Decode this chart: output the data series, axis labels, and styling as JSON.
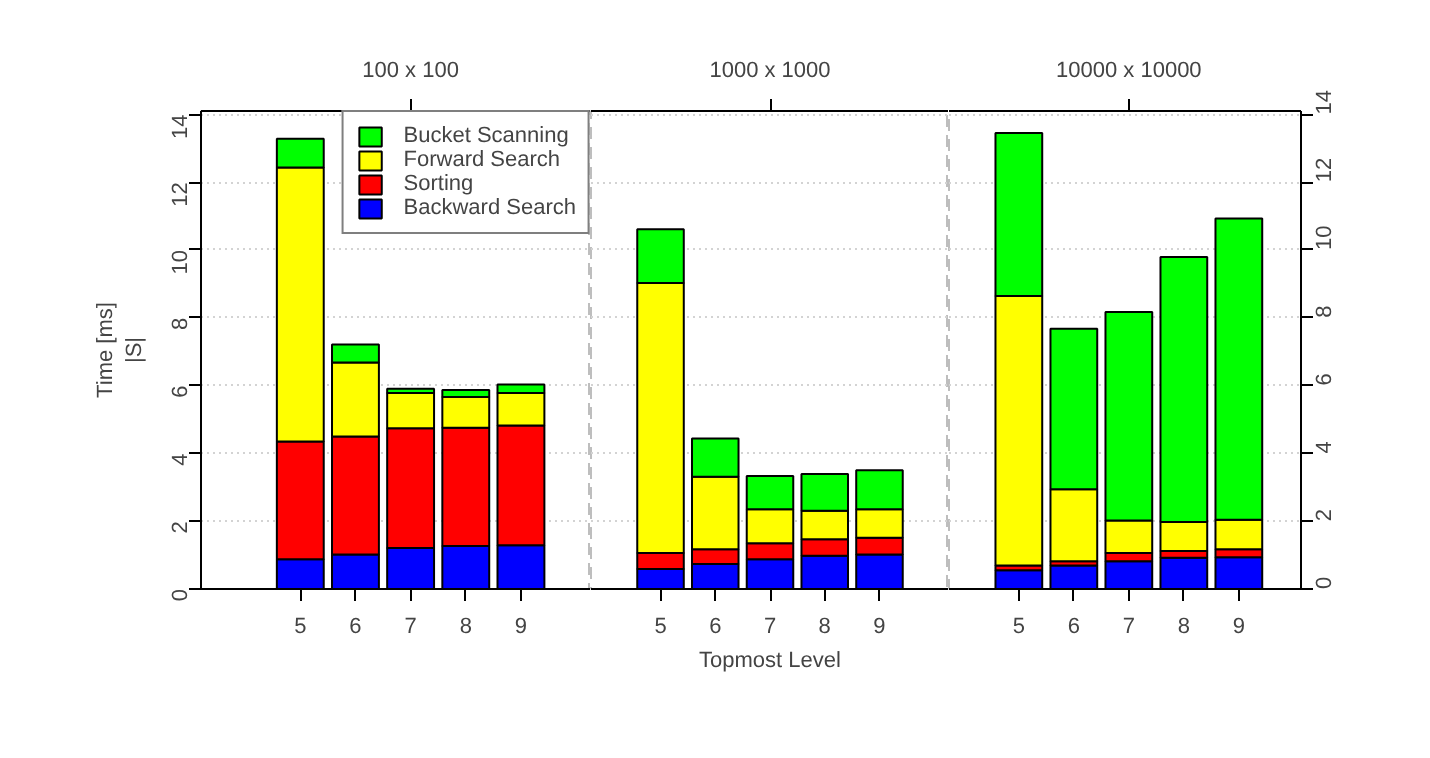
{
  "chart_data": [
    {
      "type": "bar",
      "stacked": true,
      "title": "100 x 100",
      "ylabel": "Time [ms]\n|S|",
      "categories": [
        "5",
        "6",
        "7",
        "8",
        "9"
      ],
      "ylim": [
        0,
        14.1
      ],
      "yticks": [
        0,
        2,
        4,
        6,
        8,
        10,
        12,
        14
      ],
      "series": [
        {
          "name": "Backward Search",
          "color": "#0000ff",
          "values": [
            0.88,
            1.02,
            1.21,
            1.27,
            1.29
          ]
        },
        {
          "name": "Sorting",
          "color": "#ff0000",
          "values": [
            3.47,
            3.48,
            3.53,
            3.49,
            3.53
          ]
        },
        {
          "name": "Forward Search",
          "color": "#ffff00",
          "values": [
            8.08,
            2.18,
            1.04,
            0.9,
            0.96
          ]
        },
        {
          "name": "Bucket Scanning",
          "color": "#00ff00",
          "values": [
            0.85,
            0.53,
            0.13,
            0.21,
            0.25
          ]
        }
      ],
      "grid": "y",
      "legend": "top right"
    },
    {
      "type": "bar",
      "stacked": true,
      "title": "1000 x 1000",
      "xlabel": "Topmost Level",
      "categories": [
        "5",
        "6",
        "7",
        "8",
        "9"
      ],
      "ylim": [
        0,
        14.1
      ],
      "yticks": [
        0,
        2,
        4,
        6,
        8,
        10,
        12,
        14
      ],
      "tick_labels": "x",
      "series": [
        {
          "color": "#0000ff",
          "values": [
            0.59,
            0.74,
            0.88,
            0.98,
            1.02
          ]
        },
        {
          "color": "#ff0000",
          "values": [
            0.47,
            0.43,
            0.47,
            0.49,
            0.49
          ]
        },
        {
          "color": "#ffff00",
          "values": [
            7.97,
            2.14,
            1.0,
            0.84,
            0.84
          ]
        },
        {
          "color": "#00ff00",
          "values": [
            1.58,
            1.13,
            0.98,
            1.08,
            1.15
          ]
        }
      ],
      "grid": "y"
    },
    {
      "type": "bar",
      "stacked": true,
      "title": "10000 x 10000",
      "categories": [
        "5",
        "6",
        "7",
        "8",
        "9"
      ],
      "y2lim": [
        0,
        14.1
      ],
      "y2ticks": [
        0,
        2,
        4,
        6,
        8,
        10,
        12,
        14
      ],
      "series": [
        {
          "color": "#0000ff",
          "axis": "y2",
          "values": [
            0.55,
            0.69,
            0.82,
            0.92,
            0.94
          ]
        },
        {
          "color": "#ff0000",
          "axis": "y2",
          "values": [
            0.14,
            0.13,
            0.24,
            0.2,
            0.23
          ]
        },
        {
          "color": "#ffff00",
          "axis": "y2",
          "values": [
            7.95,
            2.12,
            0.96,
            0.86,
            0.87
          ]
        },
        {
          "color": "#00ff00",
          "axis": "y2",
          "values": [
            4.81,
            4.74,
            6.15,
            7.81,
            8.89
          ]
        }
      ],
      "grid": "y"
    }
  ]
}
